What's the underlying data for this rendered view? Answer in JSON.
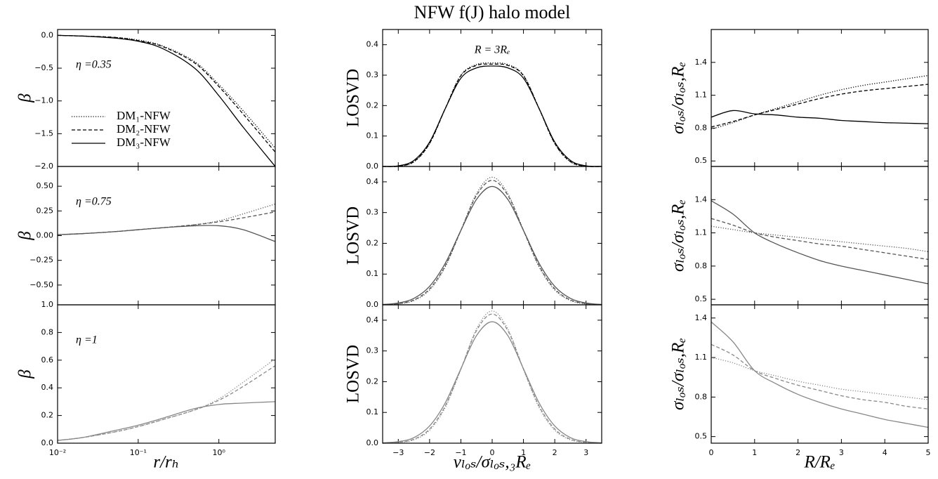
{
  "chart_data": [
    {
      "type": "line",
      "ylabel": "β",
      "annotation": "η =0.35",
      "xscale": "log",
      "legend": "upper left",
      "x": [
        0.01,
        0.02,
        0.05,
        0.1,
        0.2,
        0.5,
        1,
        2,
        5
      ],
      "xlim": [
        0.01,
        5
      ],
      "ylim": [
        -2,
        0.09
      ],
      "yticks": [
        {
          "value": 0,
          "label": "0.0"
        },
        {
          "value": -0.5,
          "label": "−0.5"
        },
        {
          "value": -1,
          "label": "−1.0"
        },
        {
          "value": -1.5,
          "label": "−1.5"
        },
        {
          "value": -2,
          "label": "−2.0"
        }
      ],
      "series": [
        {
          "name": "DM₁-NFW",
          "color": "#000000",
          "linestyle": "dotted",
          "values": [
            0,
            -0.01,
            -0.03,
            -0.07,
            -0.16,
            -0.4,
            -0.75,
            -1.15,
            -1.72
          ]
        },
        {
          "name": "DM₂-NFW",
          "color": "#000000",
          "linestyle": "dashed",
          "values": [
            0,
            -0.01,
            -0.03,
            -0.08,
            -0.17,
            -0.42,
            -0.78,
            -1.2,
            -1.78
          ]
        },
        {
          "name": "DM₃-NFW",
          "color": "#000000",
          "linestyle": "solid",
          "values": [
            0,
            -0.01,
            -0.04,
            -0.09,
            -0.2,
            -0.5,
            -0.92,
            -1.4,
            -2.0
          ]
        }
      ]
    },
    {
      "type": "line",
      "ylabel": "β",
      "annotation": "η =0.75",
      "xscale": "log",
      "x": [
        0.01,
        0.02,
        0.05,
        0.1,
        0.2,
        0.5,
        1,
        2,
        5
      ],
      "xlim": [
        0.01,
        5
      ],
      "ylim": [
        -0.7,
        0.7
      ],
      "yticks": [
        {
          "value": 0.5,
          "label": "0.50"
        },
        0.25,
        {
          "value": 0,
          "label": "0.00"
        },
        {
          "value": -0.25,
          "label": "−0.25"
        },
        {
          "value": -0.5,
          "label": "−0.50"
        }
      ],
      "series": [
        {
          "color": "#555555",
          "linestyle": "dotted",
          "values": [
            0.01,
            0.02,
            0.04,
            0.06,
            0.08,
            0.11,
            0.15,
            0.22,
            0.32
          ]
        },
        {
          "color": "#555555",
          "linestyle": "dashed",
          "values": [
            0.01,
            0.02,
            0.04,
            0.06,
            0.08,
            0.11,
            0.14,
            0.18,
            0.24
          ]
        },
        {
          "color": "#555555",
          "linestyle": "solid",
          "values": [
            0.01,
            0.02,
            0.04,
            0.06,
            0.08,
            0.1,
            0.1,
            0.06,
            -0.06
          ]
        }
      ]
    },
    {
      "type": "line",
      "ylabel": "β",
      "annotation": "η =1",
      "xscale": "log",
      "xlabel": "r/rₕ",
      "x": [
        0.01,
        0.02,
        0.05,
        0.1,
        0.2,
        0.5,
        1,
        2,
        5
      ],
      "xlim": [
        0.01,
        5
      ],
      "ylim": [
        0,
        1
      ],
      "xticks": [
        {
          "value": 0.01,
          "label": "10⁻²"
        },
        {
          "value": 0.1,
          "label": "10⁻¹"
        },
        {
          "value": 1,
          "label": "10⁰"
        }
      ],
      "yticks": [
        {
          "value": 0,
          "label": "0.0"
        },
        0.2,
        0.4,
        0.6,
        0.8,
        {
          "value": 1,
          "label": "1.0"
        }
      ],
      "series": [
        {
          "color": "#888888",
          "linestyle": "dotted",
          "values": [
            0.02,
            0.04,
            0.08,
            0.12,
            0.17,
            0.24,
            0.32,
            0.44,
            0.61
          ]
        },
        {
          "color": "#888888",
          "linestyle": "dashed",
          "values": [
            0.02,
            0.04,
            0.08,
            0.12,
            0.17,
            0.24,
            0.31,
            0.41,
            0.56
          ]
        },
        {
          "color": "#888888",
          "linestyle": "solid",
          "values": [
            0.02,
            0.04,
            0.09,
            0.13,
            0.18,
            0.25,
            0.28,
            0.29,
            0.3
          ]
        }
      ]
    },
    {
      "type": "line",
      "title": "NFW f(J) halo model",
      "ylabel": "LOSVD",
      "annotation": "R = 3Rₑ",
      "x": [
        -3.5,
        -3,
        -2.5,
        -2,
        -1.5,
        -1,
        -0.5,
        0,
        0.5,
        1,
        1.5,
        2,
        2.5,
        3,
        3.5
      ],
      "xlim": [
        -3.5,
        3.5
      ],
      "ylim": [
        0,
        0.45
      ],
      "yticks": [
        {
          "value": 0,
          "label": "0.0"
        },
        0.1,
        0.2,
        0.3,
        0.4
      ],
      "series": [
        {
          "color": "#000000",
          "linestyle": "dotted",
          "values": [
            0,
            0.001,
            0.015,
            0.075,
            0.19,
            0.3,
            0.335,
            0.34,
            0.335,
            0.3,
            0.19,
            0.075,
            0.015,
            0.001,
            0
          ]
        },
        {
          "color": "#000000",
          "linestyle": "dashed",
          "values": [
            0,
            0.001,
            0.016,
            0.076,
            0.19,
            0.298,
            0.332,
            0.336,
            0.332,
            0.298,
            0.19,
            0.076,
            0.016,
            0.001,
            0
          ]
        },
        {
          "color": "#000000",
          "linestyle": "solid",
          "values": [
            0,
            0.002,
            0.02,
            0.08,
            0.19,
            0.29,
            0.324,
            0.33,
            0.324,
            0.29,
            0.19,
            0.08,
            0.02,
            0.002,
            0
          ]
        }
      ]
    },
    {
      "type": "line",
      "ylabel": "LOSVD",
      "x": [
        -3.5,
        -3,
        -2.5,
        -2,
        -1.5,
        -1,
        -0.5,
        0,
        0.5,
        1,
        1.5,
        2,
        2.5,
        3,
        3.5
      ],
      "xlim": [
        -3.5,
        3.5
      ],
      "ylim": [
        0,
        0.45
      ],
      "yticks": [
        {
          "value": 0,
          "label": "0.0"
        },
        0.1,
        0.2,
        0.3,
        0.4
      ],
      "series": [
        {
          "color": "#555555",
          "linestyle": "dotted",
          "values": [
            0.001,
            0.003,
            0.014,
            0.048,
            0.123,
            0.242,
            0.362,
            0.415,
            0.362,
            0.242,
            0.123,
            0.048,
            0.014,
            0.003,
            0.001
          ]
        },
        {
          "color": "#555555",
          "linestyle": "dashed",
          "values": [
            0.001,
            0.004,
            0.016,
            0.052,
            0.127,
            0.242,
            0.356,
            0.405,
            0.356,
            0.242,
            0.127,
            0.052,
            0.016,
            0.004,
            0.001
          ]
        },
        {
          "color": "#555555",
          "linestyle": "solid",
          "values": [
            0.001,
            0.006,
            0.021,
            0.06,
            0.135,
            0.242,
            0.343,
            0.385,
            0.343,
            0.242,
            0.135,
            0.06,
            0.021,
            0.006,
            0.001
          ]
        }
      ]
    },
    {
      "type": "line",
      "ylabel": "LOSVD",
      "xlabel": "vₗₒₛ/σₗₒₛ,₃Rₑ",
      "x": [
        -3.5,
        -3,
        -2.5,
        -2,
        -1.5,
        -1,
        -0.5,
        0,
        0.5,
        1,
        1.5,
        2,
        2.5,
        3,
        3.5
      ],
      "xlim": [
        -3.5,
        3.5
      ],
      "ylim": [
        0,
        0.45
      ],
      "xticks": [
        {
          "value": -3,
          "label": "−3"
        },
        {
          "value": -2,
          "label": "−2"
        },
        {
          "value": -1,
          "label": "−1"
        },
        0,
        1,
        2,
        3
      ],
      "yticks": [
        {
          "value": 0,
          "label": "0.0"
        },
        0.1,
        0.2,
        0.3,
        0.4
      ],
      "series": [
        {
          "color": "#888888",
          "linestyle": "dotted",
          "values": [
            0,
            0.002,
            0.011,
            0.042,
            0.116,
            0.24,
            0.372,
            0.43,
            0.372,
            0.24,
            0.116,
            0.042,
            0.011,
            0.002,
            0
          ]
        },
        {
          "color": "#888888",
          "linestyle": "dashed",
          "values": [
            0,
            0.003,
            0.013,
            0.046,
            0.121,
            0.241,
            0.366,
            0.42,
            0.366,
            0.241,
            0.121,
            0.046,
            0.013,
            0.003,
            0
          ]
        },
        {
          "color": "#888888",
          "linestyle": "solid",
          "values": [
            0.001,
            0.005,
            0.018,
            0.056,
            0.131,
            0.242,
            0.35,
            0.395,
            0.35,
            0.242,
            0.131,
            0.056,
            0.018,
            0.005,
            0.001
          ]
        }
      ]
    },
    {
      "type": "line",
      "ylabel": "σₗₒₛ/σₗₒₛ,Rₑ",
      "x": [
        0,
        0.5,
        1,
        1.5,
        2,
        2.5,
        3,
        3.5,
        4,
        4.5,
        5
      ],
      "xlim": [
        0,
        5
      ],
      "ylim": [
        0.45,
        1.7
      ],
      "yticks": [
        0.5,
        0.8,
        1.1,
        1.4
      ],
      "series": [
        {
          "color": "#000000",
          "linestyle": "dotted",
          "values": [
            0.79,
            0.85,
            0.92,
            0.98,
            1.04,
            1.1,
            1.15,
            1.19,
            1.22,
            1.25,
            1.28
          ]
        },
        {
          "color": "#000000",
          "linestyle": "dashed",
          "values": [
            0.81,
            0.86,
            0.92,
            0.97,
            1.02,
            1.07,
            1.11,
            1.14,
            1.16,
            1.18,
            1.2
          ]
        },
        {
          "color": "#000000",
          "linestyle": "solid",
          "values": [
            0.9,
            0.96,
            0.93,
            0.92,
            0.9,
            0.89,
            0.87,
            0.86,
            0.85,
            0.845,
            0.84
          ]
        }
      ]
    },
    {
      "type": "line",
      "ylabel": "σₗₒₛ/σₗₒₛ,Rₑ",
      "x": [
        0,
        0.5,
        1,
        1.5,
        2,
        2.5,
        3,
        3.5,
        4,
        4.5,
        5
      ],
      "xlim": [
        0,
        5
      ],
      "ylim": [
        0.45,
        1.7
      ],
      "yticks": [
        0.5,
        0.8,
        1.1,
        1.4
      ],
      "series": [
        {
          "color": "#555555",
          "linestyle": "dotted",
          "values": [
            1.16,
            1.13,
            1.1,
            1.08,
            1.06,
            1.04,
            1.02,
            1.0,
            0.98,
            0.96,
            0.93
          ]
        },
        {
          "color": "#555555",
          "linestyle": "dashed",
          "values": [
            1.23,
            1.17,
            1.1,
            1.06,
            1.03,
            1.0,
            0.98,
            0.95,
            0.92,
            0.89,
            0.86
          ]
        },
        {
          "color": "#555555",
          "linestyle": "solid",
          "values": [
            1.39,
            1.27,
            1.1,
            1.0,
            0.92,
            0.85,
            0.8,
            0.76,
            0.72,
            0.68,
            0.64
          ]
        }
      ]
    },
    {
      "type": "line",
      "ylabel": "σₗₒₛ/σₗₒₛ,Rₑ",
      "xlabel": "R/Rₑ",
      "x": [
        0,
        0.5,
        1,
        1.5,
        2,
        2.5,
        3,
        3.5,
        4,
        4.5,
        5
      ],
      "xlim": [
        0,
        5
      ],
      "ylim": [
        0.45,
        1.5
      ],
      "xticks": [
        0,
        1,
        2,
        3,
        4,
        5
      ],
      "yticks": [
        0.5,
        0.8,
        1.1,
        1.4
      ],
      "series": [
        {
          "color": "#888888",
          "linestyle": "dotted",
          "values": [
            1.1,
            1.06,
            1.0,
            0.96,
            0.92,
            0.89,
            0.86,
            0.84,
            0.82,
            0.8,
            0.78
          ]
        },
        {
          "color": "#888888",
          "linestyle": "dashed",
          "values": [
            1.2,
            1.12,
            1.0,
            0.94,
            0.89,
            0.85,
            0.81,
            0.78,
            0.76,
            0.73,
            0.71
          ]
        },
        {
          "color": "#888888",
          "linestyle": "solid",
          "values": [
            1.37,
            1.22,
            1.0,
            0.9,
            0.82,
            0.76,
            0.71,
            0.67,
            0.63,
            0.6,
            0.57
          ]
        }
      ]
    }
  ]
}
